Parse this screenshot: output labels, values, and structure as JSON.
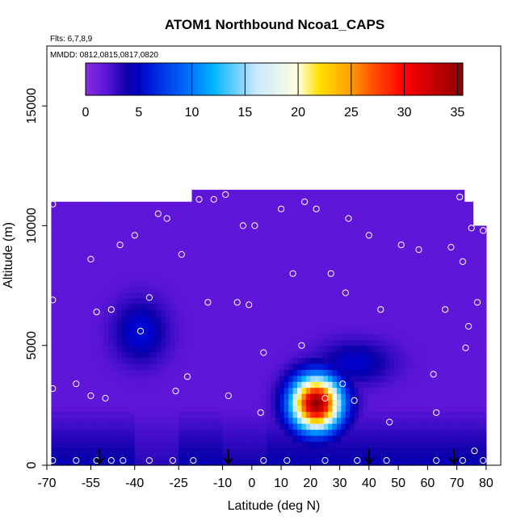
{
  "chart_data": {
    "type": "heatmap",
    "title": "ATOM1 Northbound Ncoa1_CAPS",
    "flights_label": "Flts: 6,7,8,9",
    "dates_label": "MMDD: 0812,0815,0817,0820",
    "xlabel": "Latitude (deg N)",
    "ylabel": "Altitude (m)",
    "xlim": [
      -70,
      85
    ],
    "ylim": [
      0,
      17500
    ],
    "x_ticks": [
      -70,
      -55,
      -40,
      -25,
      -10,
      0,
      10,
      20,
      30,
      40,
      50,
      60,
      70,
      80
    ],
    "x_tick_labels": [
      "-70",
      "-55",
      "-40",
      "-25",
      "-10",
      "0",
      "10",
      "20",
      "30",
      "40",
      "50",
      "60",
      "70",
      "80"
    ],
    "y_ticks": [
      0,
      5000,
      10000,
      15000
    ],
    "y_tick_labels": [
      "0",
      "5000",
      "10000",
      "15000"
    ],
    "colorbar": {
      "range": [
        0,
        35.5
      ],
      "ticks": [
        0,
        5,
        10,
        15,
        20,
        25,
        30,
        35
      ],
      "tick_labels": [
        "0",
        "5",
        "10",
        "15",
        "20",
        "25",
        "30",
        "35"
      ],
      "colors": [
        "#8a2be2",
        "#5a14d8",
        "#0a00a8",
        "#0000cd",
        "#0078ff",
        "#00b4ff",
        "#c8e8ff",
        "#ffffe0",
        "#ffe000",
        "#ff9c00",
        "#ff5000",
        "#ff0000",
        "#c00000",
        "#8b0000"
      ],
      "stops": [
        0,
        2,
        4,
        5,
        10,
        12,
        16,
        20,
        22,
        25,
        27,
        30,
        33,
        35.5
      ]
    },
    "field": {
      "background_value": 1.8,
      "coverage": [
        {
          "x": [
            -68,
            75
          ],
          "y": [
            0,
            11000
          ]
        },
        {
          "x": [
            -20,
            72
          ],
          "y": [
            11000,
            11400
          ]
        },
        {
          "x": [
            75,
            80
          ],
          "y": [
            0,
            10000
          ]
        }
      ],
      "features": [
        {
          "name": "low-altitude-band",
          "x": [
            -68,
            80
          ],
          "y": [
            0,
            2500
          ],
          "value": 4.5
        },
        {
          "name": "mid-level-enhancement-south",
          "center": [
            -38,
            5600
          ],
          "value": 5.5
        },
        {
          "name": "mid-level-enhancement-north",
          "center": [
            35,
            4300
          ],
          "value": 5.0
        },
        {
          "name": "plume-maximum",
          "center": [
            22,
            2600
          ],
          "value": 35.0
        }
      ]
    },
    "sample_points": [
      [
        -68,
        200
      ],
      [
        -60,
        200
      ],
      [
        -53,
        200
      ],
      [
        -48,
        200
      ],
      [
        -44,
        200
      ],
      [
        -35,
        200
      ],
      [
        -27,
        200
      ],
      [
        -20,
        200
      ],
      [
        4,
        200
      ],
      [
        12,
        200
      ],
      [
        25,
        200
      ],
      [
        36,
        200
      ],
      [
        46,
        200
      ],
      [
        63,
        200
      ],
      [
        72,
        200
      ],
      [
        79,
        200
      ],
      [
        -68,
        3200
      ],
      [
        -68,
        6900
      ],
      [
        -68,
        10900
      ],
      [
        -60,
        3400
      ],
      [
        -55,
        2900
      ],
      [
        -50,
        2800
      ],
      [
        -53,
        6400
      ],
      [
        -48,
        6500
      ],
      [
        -55,
        8600
      ],
      [
        -45,
        9200
      ],
      [
        -40,
        9600
      ],
      [
        -38,
        5600
      ],
      [
        -35,
        7000
      ],
      [
        -32,
        10500
      ],
      [
        -29,
        10300
      ],
      [
        -26,
        3100
      ],
      [
        -24,
        8800
      ],
      [
        -18,
        11100
      ],
      [
        -22,
        3700
      ],
      [
        -15,
        6800
      ],
      [
        -13,
        11100
      ],
      [
        -9,
        11300
      ],
      [
        -8,
        2900
      ],
      [
        -3,
        10000
      ],
      [
        1,
        10000
      ],
      [
        -5,
        6800
      ],
      [
        -1,
        6700
      ],
      [
        3,
        2200
      ],
      [
        4,
        4700
      ],
      [
        10,
        10700
      ],
      [
        14,
        8000
      ],
      [
        18,
        11000
      ],
      [
        17,
        5000
      ],
      [
        22,
        10700
      ],
      [
        25,
        2800
      ],
      [
        27,
        8000
      ],
      [
        31,
        3400
      ],
      [
        32,
        7200
      ],
      [
        33,
        10300
      ],
      [
        35,
        2700
      ],
      [
        40,
        9600
      ],
      [
        44,
        6500
      ],
      [
        47,
        1800
      ],
      [
        51,
        9200
      ],
      [
        57,
        9000
      ],
      [
        62,
        3800
      ],
      [
        63,
        2200
      ],
      [
        66,
        6500
      ],
      [
        68,
        9100
      ],
      [
        71,
        11200
      ],
      [
        72,
        8500
      ],
      [
        73,
        4900
      ],
      [
        74,
        5800
      ],
      [
        75,
        9900
      ],
      [
        76,
        600
      ],
      [
        77,
        6800
      ],
      [
        79,
        9800
      ]
    ],
    "flight_markers": [
      -52,
      -8,
      40,
      69
    ]
  }
}
